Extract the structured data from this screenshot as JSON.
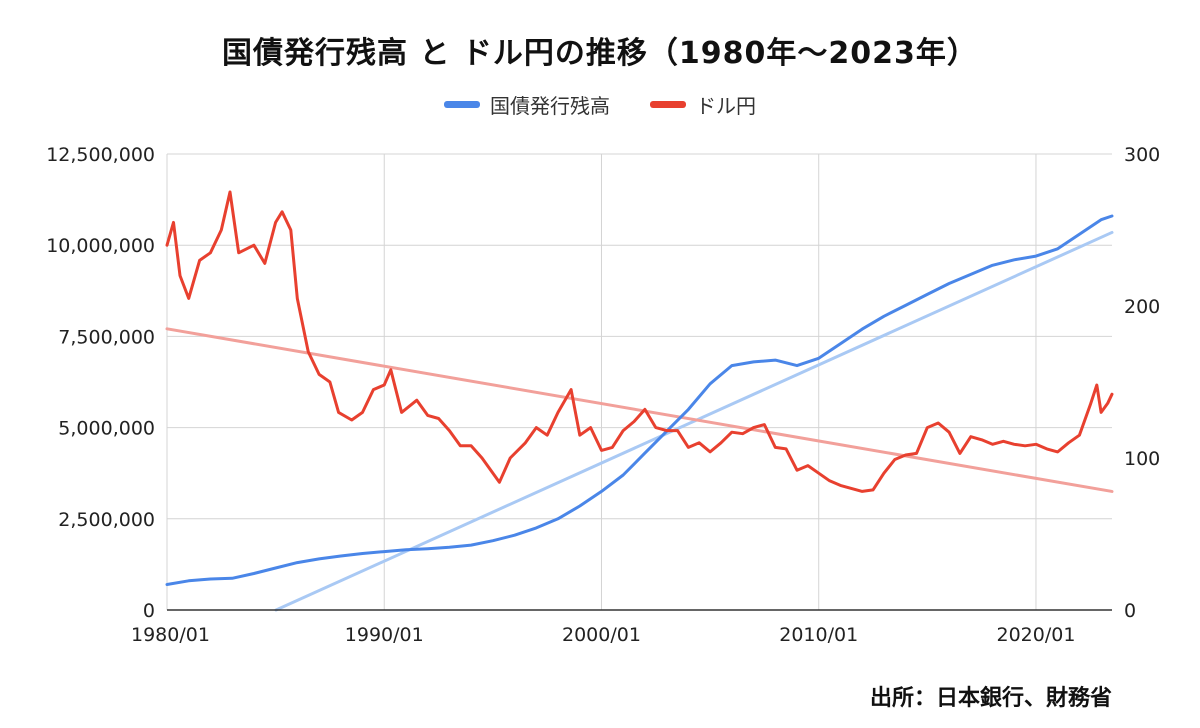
{
  "chart_data": {
    "type": "line",
    "title": "国債発行残高 と ドル円の推移（1980年～2023年）",
    "source": "出所：日本銀行、財務省",
    "legend_position": "top",
    "grid": true,
    "x_ticks": [
      "1980/01",
      "1990/01",
      "2000/01",
      "2010/01",
      "2020/01"
    ],
    "xlim": [
      1980.0,
      2023.5
    ],
    "y_left": {
      "ticks": [
        "0",
        "2,500,000",
        "5,000,000",
        "7,500,000",
        "10,000,000",
        "12,500,000"
      ],
      "ylim": [
        0,
        12500000
      ]
    },
    "y_right": {
      "ticks": [
        "0",
        "100",
        "200",
        "300"
      ],
      "ylim": [
        0,
        300
      ]
    },
    "series": [
      {
        "name": "国債発行残高",
        "axis": "left",
        "color": "#4a86e8",
        "points": [
          [
            1980.0,
            700000
          ],
          [
            1981.0,
            800000
          ],
          [
            1982.0,
            850000
          ],
          [
            1983.0,
            870000
          ],
          [
            1984.0,
            1000000
          ],
          [
            1985.0,
            1150000
          ],
          [
            1986.0,
            1300000
          ],
          [
            1987.0,
            1400000
          ],
          [
            1988.0,
            1480000
          ],
          [
            1989.0,
            1550000
          ],
          [
            1990.0,
            1600000
          ],
          [
            1991.0,
            1650000
          ],
          [
            1992.0,
            1680000
          ],
          [
            1993.0,
            1720000
          ],
          [
            1994.0,
            1780000
          ],
          [
            1995.0,
            1900000
          ],
          [
            1996.0,
            2050000
          ],
          [
            1997.0,
            2250000
          ],
          [
            1998.0,
            2500000
          ],
          [
            1999.0,
            2850000
          ],
          [
            2000.0,
            3250000
          ],
          [
            2001.0,
            3700000
          ],
          [
            2002.0,
            4300000
          ],
          [
            2003.0,
            4900000
          ],
          [
            2004.0,
            5500000
          ],
          [
            2005.0,
            6200000
          ],
          [
            2006.0,
            6700000
          ],
          [
            2007.0,
            6800000
          ],
          [
            2008.0,
            6850000
          ],
          [
            2009.0,
            6700000
          ],
          [
            2010.0,
            6900000
          ],
          [
            2011.0,
            7300000
          ],
          [
            2012.0,
            7700000
          ],
          [
            2013.0,
            8050000
          ],
          [
            2014.0,
            8350000
          ],
          [
            2015.0,
            8650000
          ],
          [
            2016.0,
            8950000
          ],
          [
            2017.0,
            9200000
          ],
          [
            2018.0,
            9450000
          ],
          [
            2019.0,
            9600000
          ],
          [
            2020.0,
            9700000
          ],
          [
            2021.0,
            9900000
          ],
          [
            2022.0,
            10300000
          ],
          [
            2023.0,
            10700000
          ],
          [
            2023.5,
            10800000
          ]
        ]
      },
      {
        "name": "ドル円",
        "axis": "right",
        "color": "#e8402f",
        "points": [
          [
            1980.0,
            240
          ],
          [
            1980.3,
            255
          ],
          [
            1980.6,
            220
          ],
          [
            1981.0,
            205
          ],
          [
            1981.5,
            230
          ],
          [
            1982.0,
            235
          ],
          [
            1982.5,
            250
          ],
          [
            1982.9,
            275
          ],
          [
            1983.3,
            235
          ],
          [
            1984.0,
            240
          ],
          [
            1984.5,
            228
          ],
          [
            1985.0,
            255
          ],
          [
            1985.3,
            262
          ],
          [
            1985.7,
            250
          ],
          [
            1986.0,
            205
          ],
          [
            1986.5,
            170
          ],
          [
            1987.0,
            155
          ],
          [
            1987.5,
            150
          ],
          [
            1987.9,
            130
          ],
          [
            1988.5,
            125
          ],
          [
            1989.0,
            130
          ],
          [
            1989.5,
            145
          ],
          [
            1990.0,
            148
          ],
          [
            1990.3,
            158
          ],
          [
            1990.8,
            130
          ],
          [
            1991.5,
            138
          ],
          [
            1992.0,
            128
          ],
          [
            1992.5,
            126
          ],
          [
            1993.0,
            118
          ],
          [
            1993.5,
            108
          ],
          [
            1994.0,
            108
          ],
          [
            1994.5,
            100
          ],
          [
            1995.3,
            84
          ],
          [
            1995.8,
            100
          ],
          [
            1996.5,
            110
          ],
          [
            1997.0,
            120
          ],
          [
            1997.5,
            115
          ],
          [
            1998.0,
            130
          ],
          [
            1998.6,
            145
          ],
          [
            1999.0,
            115
          ],
          [
            1999.5,
            120
          ],
          [
            2000.0,
            105
          ],
          [
            2000.5,
            107
          ],
          [
            2001.0,
            118
          ],
          [
            2001.5,
            124
          ],
          [
            2002.0,
            132
          ],
          [
            2002.5,
            120
          ],
          [
            2003.0,
            118
          ],
          [
            2003.5,
            118
          ],
          [
            2004.0,
            107
          ],
          [
            2004.5,
            110
          ],
          [
            2005.0,
            104
          ],
          [
            2005.5,
            110
          ],
          [
            2006.0,
            117
          ],
          [
            2006.5,
            116
          ],
          [
            2007.0,
            120
          ],
          [
            2007.5,
            122
          ],
          [
            2008.0,
            107
          ],
          [
            2008.5,
            106
          ],
          [
            2009.0,
            92
          ],
          [
            2009.5,
            95
          ],
          [
            2010.0,
            90
          ],
          [
            2010.5,
            85
          ],
          [
            2011.0,
            82
          ],
          [
            2011.5,
            80
          ],
          [
            2012.0,
            78
          ],
          [
            2012.5,
            79
          ],
          [
            2013.0,
            90
          ],
          [
            2013.5,
            99
          ],
          [
            2014.0,
            102
          ],
          [
            2014.5,
            103
          ],
          [
            2015.0,
            120
          ],
          [
            2015.5,
            123
          ],
          [
            2016.0,
            117
          ],
          [
            2016.5,
            103
          ],
          [
            2017.0,
            114
          ],
          [
            2017.5,
            112
          ],
          [
            2018.0,
            109
          ],
          [
            2018.5,
            111
          ],
          [
            2019.0,
            109
          ],
          [
            2019.5,
            108
          ],
          [
            2020.0,
            109
          ],
          [
            2020.5,
            106
          ],
          [
            2021.0,
            104
          ],
          [
            2021.5,
            110
          ],
          [
            2022.0,
            115
          ],
          [
            2022.5,
            135
          ],
          [
            2022.8,
            148
          ],
          [
            2023.0,
            130
          ],
          [
            2023.3,
            136
          ],
          [
            2023.5,
            142
          ]
        ]
      }
    ],
    "trendlines": [
      {
        "series": "国債発行残高",
        "axis": "left",
        "color": "#a9c9f4",
        "from": [
          1980.0,
          -1350000
        ],
        "to": [
          2023.5,
          10350000
        ]
      },
      {
        "series": "ドル円",
        "axis": "right",
        "color": "#f2a09a",
        "from": [
          1980.0,
          185
        ],
        "to": [
          2023.5,
          78
        ]
      }
    ]
  }
}
